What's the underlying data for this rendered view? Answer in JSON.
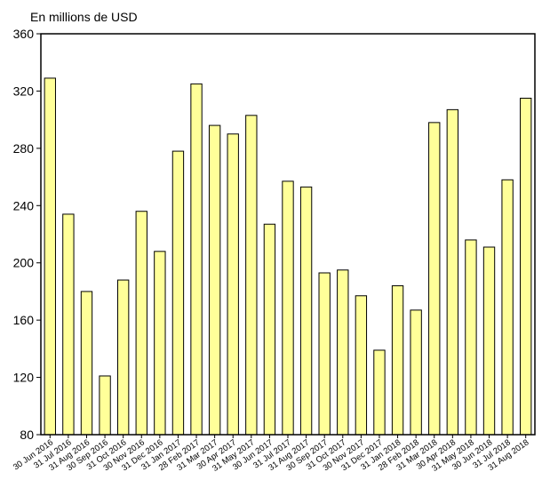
{
  "chart_data": {
    "type": "bar",
    "ylabel": "En millions de USD",
    "ylim": [
      80,
      360
    ],
    "yticks": [
      80,
      120,
      160,
      200,
      240,
      280,
      320,
      360
    ],
    "grid": false,
    "bar_color": "#ffff99",
    "bar_stroke": "#000000",
    "categories": [
      "30 Jun 2016",
      "31 Jul 2016",
      "31 Aug 2016",
      "30 Sep 2016",
      "31 Oct 2016",
      "30 Nov 2016",
      "31 Dec 2016",
      "31 Jan 2017",
      "28 Feb 2017",
      "31 Mar 2017",
      "30 Apr 2017",
      "31 May 2017",
      "30 Jun 2017",
      "31 Jul 2017",
      "31 Aug 2017",
      "30 Sep 2017",
      "31 Oct 2017",
      "30 Nov 2017",
      "31 Dec 2017",
      "31 Jan 2018",
      "28 Feb 2018",
      "31 Mar 2018",
      "30 Apr 2018",
      "31 May 2018",
      "30 Jun 2018",
      "31 Jul 2018",
      "31 Aug 2018"
    ],
    "values": [
      329,
      234,
      180,
      121,
      188,
      236,
      208,
      278,
      325,
      296,
      290,
      303,
      227,
      257,
      253,
      193,
      195,
      177,
      139,
      184,
      167,
      298,
      307,
      216,
      211,
      258,
      315
    ]
  }
}
